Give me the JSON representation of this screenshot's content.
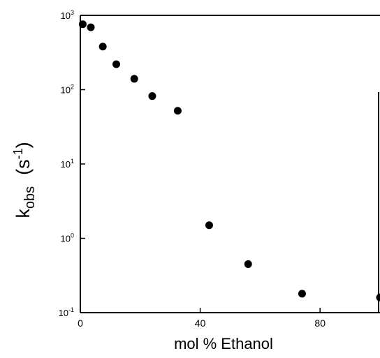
{
  "chart_data": {
    "type": "scatter",
    "title": "",
    "xlabel": "mol % Ethanol",
    "ylabel": {
      "main": "k",
      "sub": "obs",
      "unit_open": "(s",
      "unit_sup": "-1",
      "unit_close": ")"
    },
    "xlim": [
      0,
      100
    ],
    "ylim": [
      0.1,
      1000
    ],
    "yscale": "log",
    "grid": false,
    "legend": "none",
    "x_ticks": [
      {
        "value": 0,
        "label": "0"
      },
      {
        "value": 40,
        "label": "40"
      },
      {
        "value": 80,
        "label": "80"
      }
    ],
    "y_ticks": [
      {
        "value": 0.1,
        "base": "10",
        "exp": "-1"
      },
      {
        "value": 1,
        "base": "10",
        "exp": "0"
      },
      {
        "value": 10,
        "base": "10",
        "exp": "1"
      },
      {
        "value": 100,
        "base": "10",
        "exp": "2"
      },
      {
        "value": 1000,
        "base": "10",
        "exp": "3"
      }
    ],
    "marker_color": "#000000",
    "points": [
      {
        "x": 0.8,
        "y": 760
      },
      {
        "x": 3.5,
        "y": 690
      },
      {
        "x": 7.5,
        "y": 380
      },
      {
        "x": 12,
        "y": 220
      },
      {
        "x": 18,
        "y": 140
      },
      {
        "x": 24,
        "y": 82
      },
      {
        "x": 32.5,
        "y": 52
      },
      {
        "x": 43,
        "y": 1.5
      },
      {
        "x": 56,
        "y": 0.45
      },
      {
        "x": 74,
        "y": 0.18
      },
      {
        "x": 100,
        "y": 0.16
      }
    ]
  }
}
